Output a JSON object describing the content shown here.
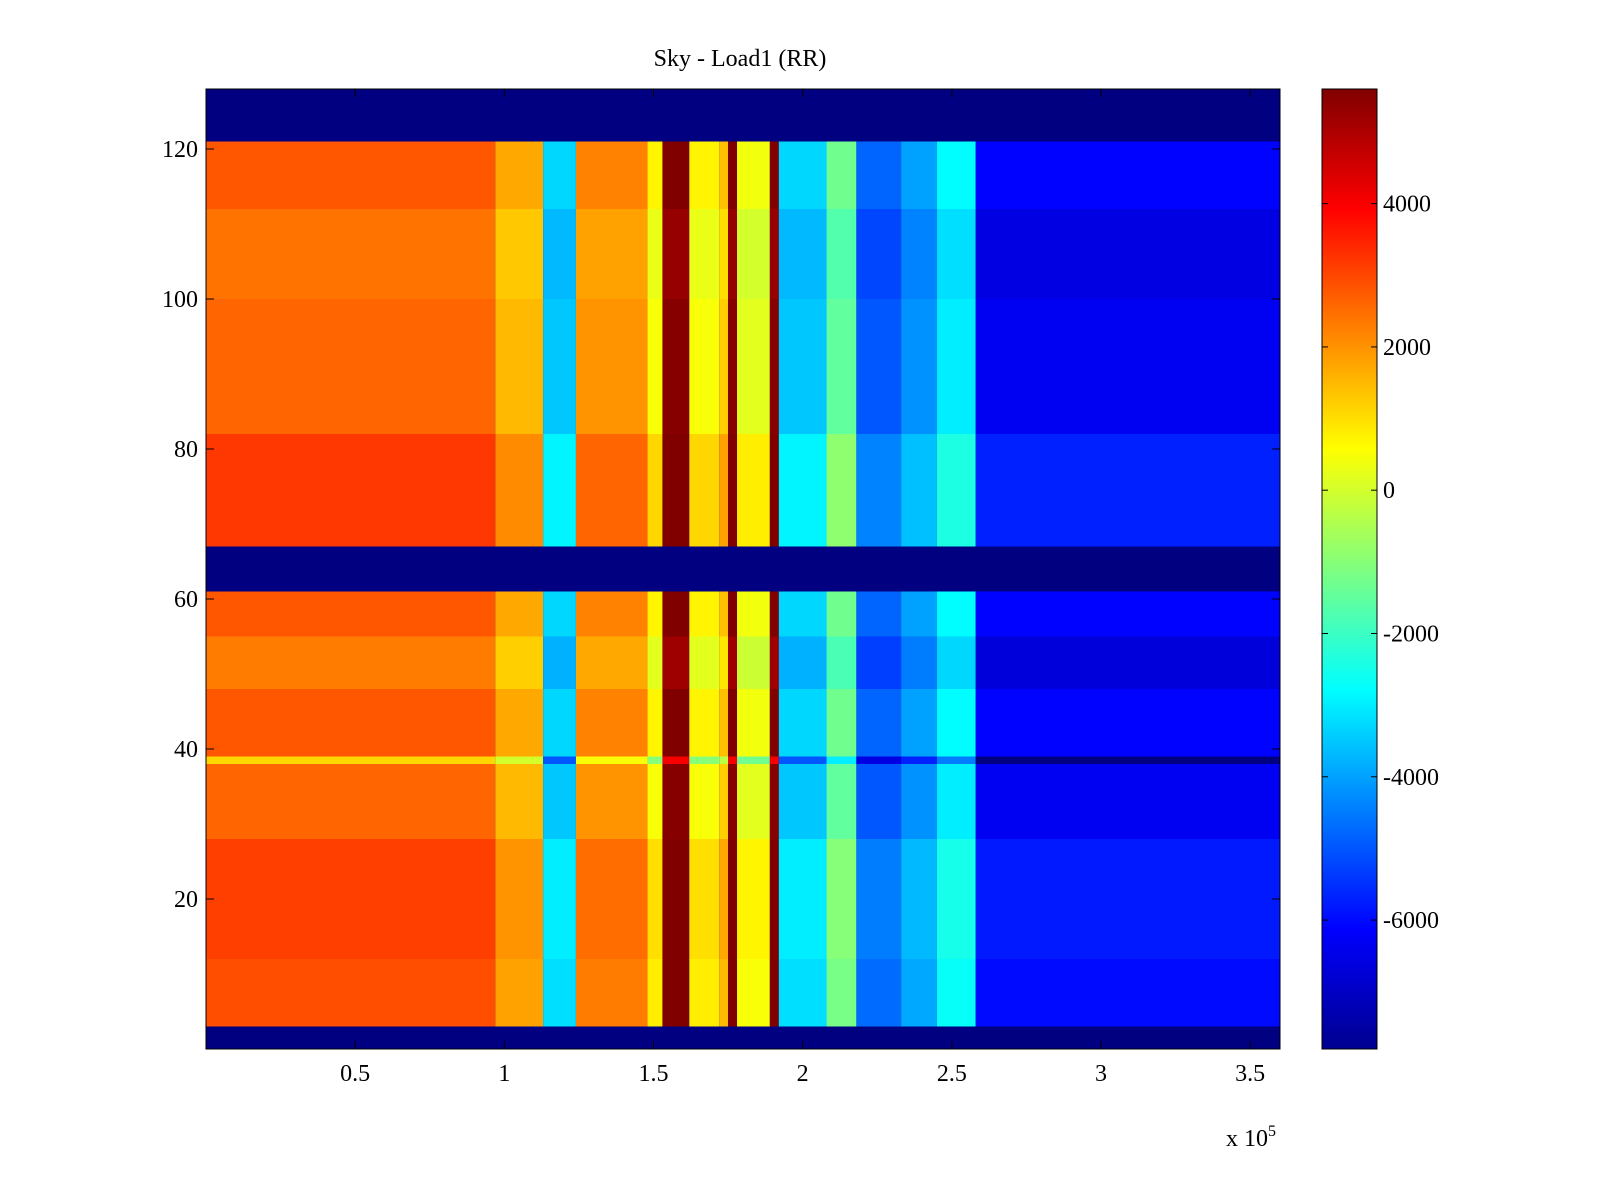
{
  "chart_data": {
    "type": "heatmap",
    "title": "Sky - Load1 (RR)",
    "xlabel": "",
    "ylabel": "",
    "x_multiplier_label": "x 10",
    "x_multiplier_exponent": "5",
    "xlim": [
      0.0,
      3.6
    ],
    "ylim": [
      0,
      128
    ],
    "x_ticks": [
      0.5,
      1,
      1.5,
      2,
      2.5,
      3,
      3.5
    ],
    "x_tick_labels": [
      "0.5",
      "1",
      "1.5",
      "2",
      "2.5",
      "3",
      "3.5"
    ],
    "y_ticks": [
      20,
      40,
      60,
      80,
      100,
      120
    ],
    "y_tick_labels": [
      "20",
      "40",
      "60",
      "80",
      "100",
      "120"
    ],
    "colormap": "jet",
    "clim": [
      -7800,
      5600
    ],
    "colorbar_ticks": [
      4000,
      2000,
      0,
      -2000,
      -4000,
      -6000
    ],
    "colorbar_tick_labels": [
      "4000",
      "2000",
      "0",
      "-2000",
      "-4000",
      "-6000"
    ],
    "colorbar_location": "right",
    "flagged_rows": [
      [
        0,
        3
      ],
      [
        61,
        67
      ],
      [
        121,
        128
      ]
    ],
    "flagged_value": -7800,
    "x_segments": [
      {
        "x0": 0.0,
        "x1": 0.97,
        "value": 2600
      },
      {
        "x0": 0.97,
        "x1": 1.13,
        "value": 1500
      },
      {
        "x0": 1.13,
        "x1": 1.24,
        "value": -3500
      },
      {
        "x0": 1.24,
        "x1": 1.48,
        "value": 2000
      },
      {
        "x0": 1.48,
        "x1": 1.53,
        "value": 500
      },
      {
        "x0": 1.53,
        "x1": 1.62,
        "value": 5500
      },
      {
        "x0": 1.62,
        "x1": 1.72,
        "value": 500
      },
      {
        "x0": 1.72,
        "x1": 1.75,
        "value": 1200
      },
      {
        "x0": 1.75,
        "x1": 1.78,
        "value": 5500
      },
      {
        "x0": 1.78,
        "x1": 1.89,
        "value": 200
      },
      {
        "x0": 1.89,
        "x1": 1.92,
        "value": 5500
      },
      {
        "x0": 1.92,
        "x1": 2.08,
        "value": -3500
      },
      {
        "x0": 2.08,
        "x1": 2.18,
        "value": -1500
      },
      {
        "x0": 2.18,
        "x1": 2.33,
        "value": -5000
      },
      {
        "x0": 2.33,
        "x1": 2.45,
        "value": -4200
      },
      {
        "x0": 2.45,
        "x1": 2.58,
        "value": -3000
      },
      {
        "x0": 2.58,
        "x1": 3.6,
        "value": -6300
      }
    ],
    "row_offsets": [
      {
        "y0": 3,
        "y1": 12,
        "value": 300
      },
      {
        "y0": 12,
        "y1": 28,
        "value": 500
      },
      {
        "y0": 28,
        "y1": 38,
        "value": 0
      },
      {
        "y0": 38,
        "y1": 39,
        "value": -1500
      },
      {
        "y0": 39,
        "y1": 48,
        "value": 200
      },
      {
        "y0": 48,
        "y1": 55,
        "value": -300
      },
      {
        "y0": 55,
        "y1": 61,
        "value": 200
      },
      {
        "y0": 67,
        "y1": 82,
        "value": 600
      },
      {
        "y0": 82,
        "y1": 100,
        "value": 0
      },
      {
        "y0": 100,
        "y1": 112,
        "value": -200
      },
      {
        "y0": 112,
        "y1": 121,
        "value": 200
      }
    ]
  }
}
